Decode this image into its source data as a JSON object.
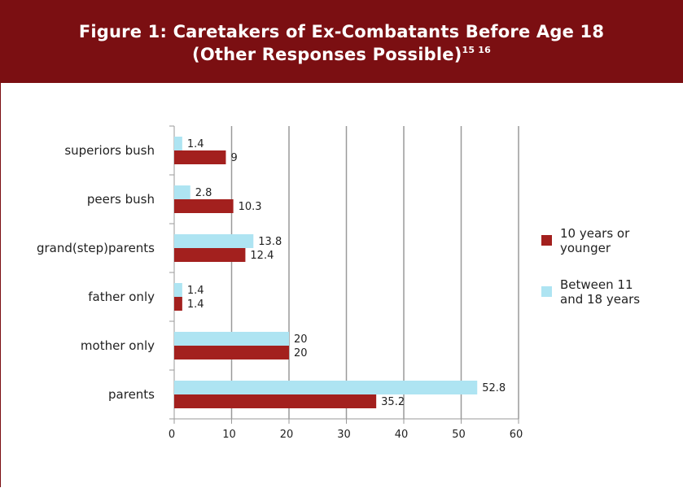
{
  "header": {
    "line1": "Figure 1: Caretakers of Ex-Combatants Before Age 18",
    "line2": "(Other Responses Possible)",
    "footnotes": "15 16"
  },
  "colors": {
    "header_bg": "#7b0f12",
    "series_older": "#aee4f2",
    "series_younger": "#a3201e",
    "grid": "#9a9a9a"
  },
  "chart_data": {
    "type": "bar",
    "orientation": "horizontal",
    "categories": [
      "superiors bush",
      "peers bush",
      "grand(step)parents",
      "father only",
      "mother only",
      "parents"
    ],
    "series": [
      {
        "name": "Between 11\nand 18 years",
        "values": [
          1.4,
          2.8,
          13.8,
          1.4,
          20,
          52.8
        ]
      },
      {
        "name": "10 years or\nyounger",
        "values": [
          9,
          10.3,
          12.4,
          1.4,
          20,
          35.2
        ]
      }
    ],
    "value_labels": [
      [
        "1.4",
        "2.8",
        "13.8",
        "1.4",
        "20",
        "52.8"
      ],
      [
        "9",
        "10.3",
        "12.4",
        "1.4",
        "20",
        "35.2"
      ]
    ],
    "xlim": [
      0,
      60
    ],
    "xticks": [
      "0",
      "10",
      "20",
      "30",
      "40",
      "50",
      "60"
    ],
    "grid": true,
    "legend_position": "right"
  },
  "legend": {
    "items": [
      {
        "label": "10 years or\nyounger",
        "color": "#a3201e"
      },
      {
        "label": "Between 11\nand 18 years",
        "color": "#aee4f2"
      }
    ]
  }
}
